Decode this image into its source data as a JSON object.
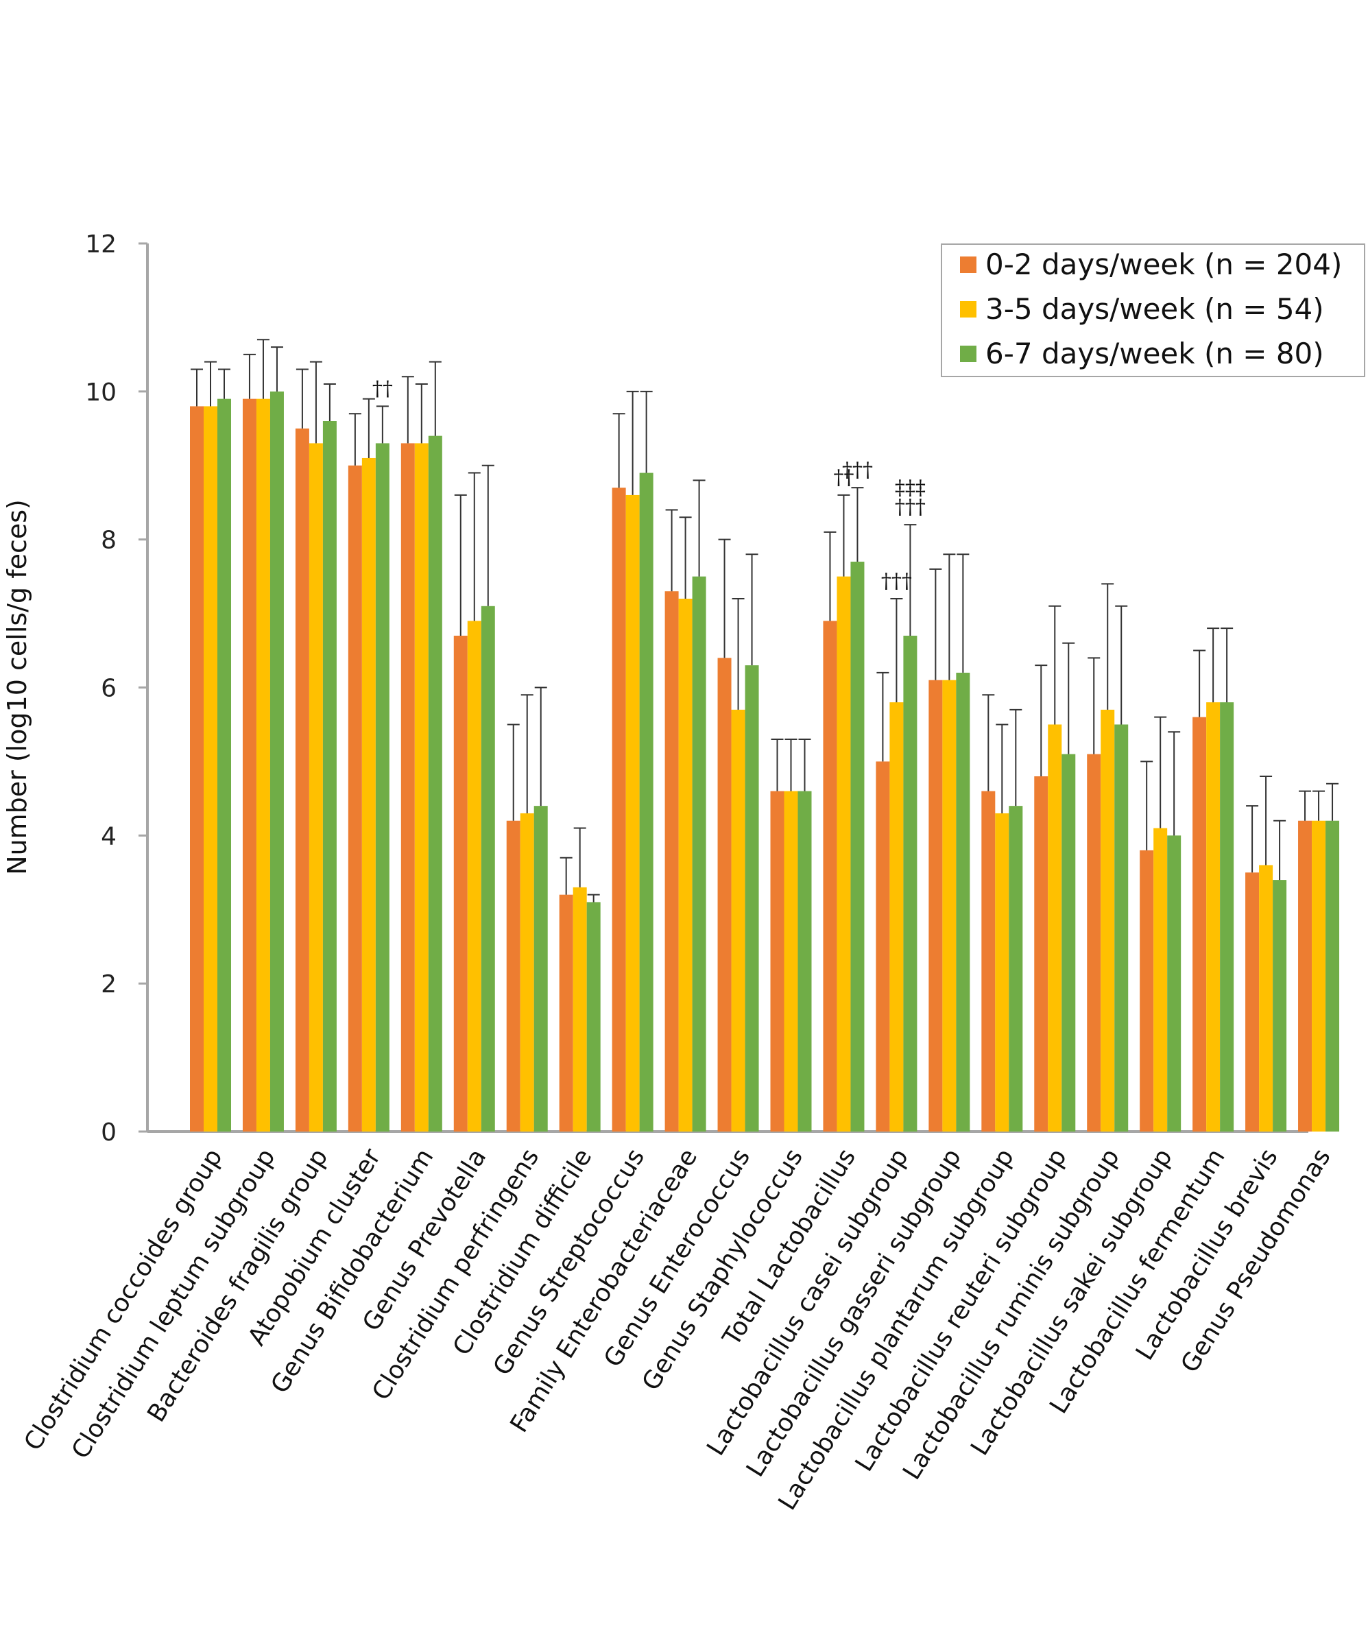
{
  "chart_data": {
    "type": "bar",
    "title": "",
    "xlabel": "",
    "ylabel": "Number (log10 cells/g feces)",
    "ylim": [
      0,
      12
    ],
    "yticks": [
      0,
      2,
      4,
      6,
      8,
      10,
      12
    ],
    "grid": false,
    "legend_position": "top-right",
    "categories": [
      "Clostridium coccoides group",
      "Clostridium leptum subgroup",
      "Bacteroides fragilis group",
      "Atopobium cluster",
      "Genus Bifidobacterium",
      "Genus Prevotella",
      "Clostridium perfringens",
      "Clostridium difficile",
      "Genus Streptococcus",
      "Family Enterobacteriaceae",
      "Genus Enterococcus",
      "Genus Staphylococcus",
      "Total Lactobacillus",
      "Lactobacillus casei subgroup",
      "Lactobacillus gasseri subgroup",
      "Lactobacillus plantarum subgroup",
      "Lactobacillus reuteri subgroup",
      "Lactobacillus ruminis subgroup",
      "Lactobacillus sakei subgroup",
      "Lactobacillus fermentum",
      "Lactobacillus brevis",
      "Genus Pseudomonas"
    ],
    "series": [
      {
        "name": "0-2 days/week (n = 204)",
        "color": "#ED7D31",
        "values": [
          9.8,
          9.9,
          9.5,
          9.0,
          9.3,
          6.7,
          4.2,
          3.2,
          8.7,
          7.3,
          6.4,
          4.6,
          6.9,
          5.0,
          6.1,
          4.6,
          4.8,
          5.1,
          3.8,
          5.6,
          3.5,
          4.2
        ],
        "error": [
          0.5,
          0.6,
          0.8,
          0.7,
          0.9,
          1.9,
          1.3,
          0.5,
          1.0,
          1.1,
          1.6,
          0.7,
          1.2,
          1.2,
          1.5,
          1.3,
          1.5,
          1.3,
          1.2,
          0.9,
          0.9,
          0.4
        ]
      },
      {
        "name": "3-5 days/week (n = 54)",
        "color": "#FFC000",
        "values": [
          9.8,
          9.9,
          9.3,
          9.1,
          9.3,
          6.9,
          4.3,
          3.3,
          8.6,
          7.2,
          5.7,
          4.6,
          7.5,
          5.8,
          6.1,
          4.3,
          5.5,
          5.7,
          4.1,
          5.8,
          3.6,
          4.2
        ],
        "error": [
          0.6,
          0.8,
          1.1,
          0.8,
          0.8,
          2.0,
          1.6,
          0.8,
          1.4,
          1.1,
          1.5,
          0.7,
          1.1,
          1.4,
          1.7,
          1.2,
          1.6,
          1.7,
          1.5,
          1.0,
          1.2,
          0.4
        ]
      },
      {
        "name": "6-7 days/week (n = 80)",
        "color": "#70AD47",
        "values": [
          9.9,
          10.0,
          9.6,
          9.3,
          9.4,
          7.1,
          4.4,
          3.1,
          8.9,
          7.5,
          6.3,
          4.6,
          7.7,
          6.7,
          6.2,
          4.4,
          5.1,
          5.5,
          4.0,
          5.8,
          3.4,
          4.2
        ],
        "error": [
          0.4,
          0.6,
          0.5,
          0.5,
          1.0,
          1.9,
          1.6,
          0.1,
          1.1,
          1.3,
          1.5,
          0.7,
          1.0,
          1.5,
          1.6,
          1.3,
          1.5,
          1.6,
          1.4,
          1.0,
          0.8,
          0.5
        ]
      }
    ],
    "annotations": [
      {
        "category": "Atopobium cluster",
        "series": 2,
        "lines": [
          "††"
        ]
      },
      {
        "category": "Total Lactobacillus",
        "series": 1,
        "lines": [
          "††"
        ]
      },
      {
        "category": "Total Lactobacillus",
        "series": 2,
        "lines": [
          "†††"
        ]
      },
      {
        "category": "Lactobacillus casei subgroup",
        "series": 1,
        "lines": [
          "†††"
        ]
      },
      {
        "category": "Lactobacillus casei subgroup",
        "series": 2,
        "lines": [
          "‡‡‡",
          "†††"
        ]
      }
    ]
  }
}
